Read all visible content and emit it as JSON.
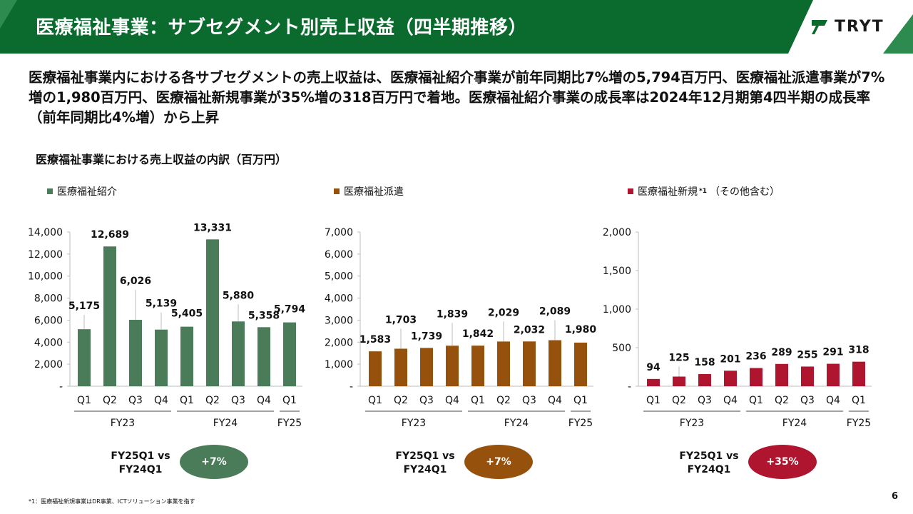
{
  "header": {
    "title": "医療福祉事業：サブセグメント別売上収益（四半期推移）",
    "logo_text": "TRYT",
    "colors": {
      "band": "#0b6b2f",
      "band_light": "#2e8b50"
    }
  },
  "lead_text": "医療福祉事業内における各サブセグメントの売上収益は、医療福祉紹介事業が前年同期比7%増の5,794百万円、医療福祉派遣事業が7%増の1,980百万円、医療福祉新規事業が35%増の318百万円で着地。医療福祉紹介事業の成長率は2024年12月期第4四半期の成長率（前年同期比4%増）から上昇",
  "breakdown_title": "医療福祉事業における売上収益の内訳（百万円）",
  "legends": [
    {
      "label": "医療福祉紹介",
      "sup": "",
      "suffix": "",
      "color": "#4a7c59"
    },
    {
      "label": "医療福祉派遣",
      "sup": "",
      "suffix": "",
      "color": "#96510c"
    },
    {
      "label": "医療福祉新規",
      "sup": "*1",
      "suffix": "（その他含む）",
      "color": "#b0152f"
    }
  ],
  "chart_data": [
    {
      "type": "bar",
      "series": [
        {
          "name": "医療福祉紹介",
          "values": [
            5175,
            12689,
            6026,
            5139,
            5405,
            13331,
            5880,
            5358,
            5794
          ]
        }
      ],
      "categories": [
        "Q1",
        "Q2",
        "Q3",
        "Q4",
        "Q1",
        "Q2",
        "Q3",
        "Q4",
        "Q1"
      ],
      "groups": [
        {
          "label": "FY23",
          "count": 4
        },
        {
          "label": "FY24",
          "count": 4
        },
        {
          "label": "FY25",
          "count": 1
        }
      ],
      "data_labels": [
        "5,175",
        "12,689",
        "6,026",
        "5,139",
        "5,405",
        "13,331",
        "5,880",
        "5,358",
        "5,794"
      ],
      "ylim": [
        0,
        14000
      ],
      "yticks": [
        0,
        2000,
        4000,
        6000,
        8000,
        10000,
        12000,
        14000
      ],
      "ytick_labels": [
        "-",
        "2,000",
        "4,000",
        "6,000",
        "8,000",
        "10,000",
        "12,000",
        "14,000"
      ],
      "color": "#4a7c59",
      "grid": false
    },
    {
      "type": "bar",
      "series": [
        {
          "name": "医療福祉派遣",
          "values": [
            1583,
            1703,
            1739,
            1839,
            1842,
            2029,
            2032,
            2089,
            1980
          ]
        }
      ],
      "categories": [
        "Q1",
        "Q2",
        "Q3",
        "Q4",
        "Q1",
        "Q2",
        "Q3",
        "Q4",
        "Q1"
      ],
      "groups": [
        {
          "label": "FY23",
          "count": 4
        },
        {
          "label": "FY24",
          "count": 4
        },
        {
          "label": "FY25",
          "count": 1
        }
      ],
      "data_labels": [
        "1,583",
        "1,703",
        "1,739",
        "1,839",
        "1,842",
        "2,029",
        "2,032",
        "2,089",
        "1,980"
      ],
      "ylim": [
        0,
        7000
      ],
      "yticks": [
        0,
        1000,
        2000,
        3000,
        4000,
        5000,
        6000,
        7000
      ],
      "ytick_labels": [
        "-",
        "1,000",
        "2,000",
        "3,000",
        "4,000",
        "5,000",
        "6,000",
        "7,000"
      ],
      "color": "#96510c",
      "grid": false
    },
    {
      "type": "bar",
      "series": [
        {
          "name": "医療福祉新規（その他含む）",
          "values": [
            94,
            125,
            158,
            201,
            236,
            289,
            255,
            291,
            318
          ]
        }
      ],
      "categories": [
        "Q1",
        "Q2",
        "Q3",
        "Q4",
        "Q1",
        "Q2",
        "Q3",
        "Q4",
        "Q1"
      ],
      "groups": [
        {
          "label": "FY23",
          "count": 4
        },
        {
          "label": "FY24",
          "count": 4
        },
        {
          "label": "FY25",
          "count": 1
        }
      ],
      "data_labels": [
        "94",
        "125",
        "158",
        "201",
        "236",
        "289",
        "255",
        "291",
        "318"
      ],
      "ylim": [
        0,
        2000
      ],
      "yticks": [
        0,
        500,
        1000,
        1500,
        2000
      ],
      "ytick_labels": [
        "-",
        "500",
        "1,000",
        "1,500",
        "2,000"
      ],
      "color": "#b0152f",
      "grid": false
    }
  ],
  "comparisons": [
    {
      "label_line1": "FY25Q1 vs",
      "label_line2": "FY24Q1",
      "value": "+7%",
      "color": "#4a7c59"
    },
    {
      "label_line1": "FY25Q1 vs",
      "label_line2": "FY24Q1",
      "value": "+7%",
      "color": "#96510c"
    },
    {
      "label_line1": "FY25Q1 vs",
      "label_line2": "FY24Q1",
      "value": "+35%",
      "color": "#b0152f"
    }
  ],
  "footnote": "*1：医療福祉新規事業はDR事業、ICTソリューション事業を指す",
  "page_number": "6"
}
